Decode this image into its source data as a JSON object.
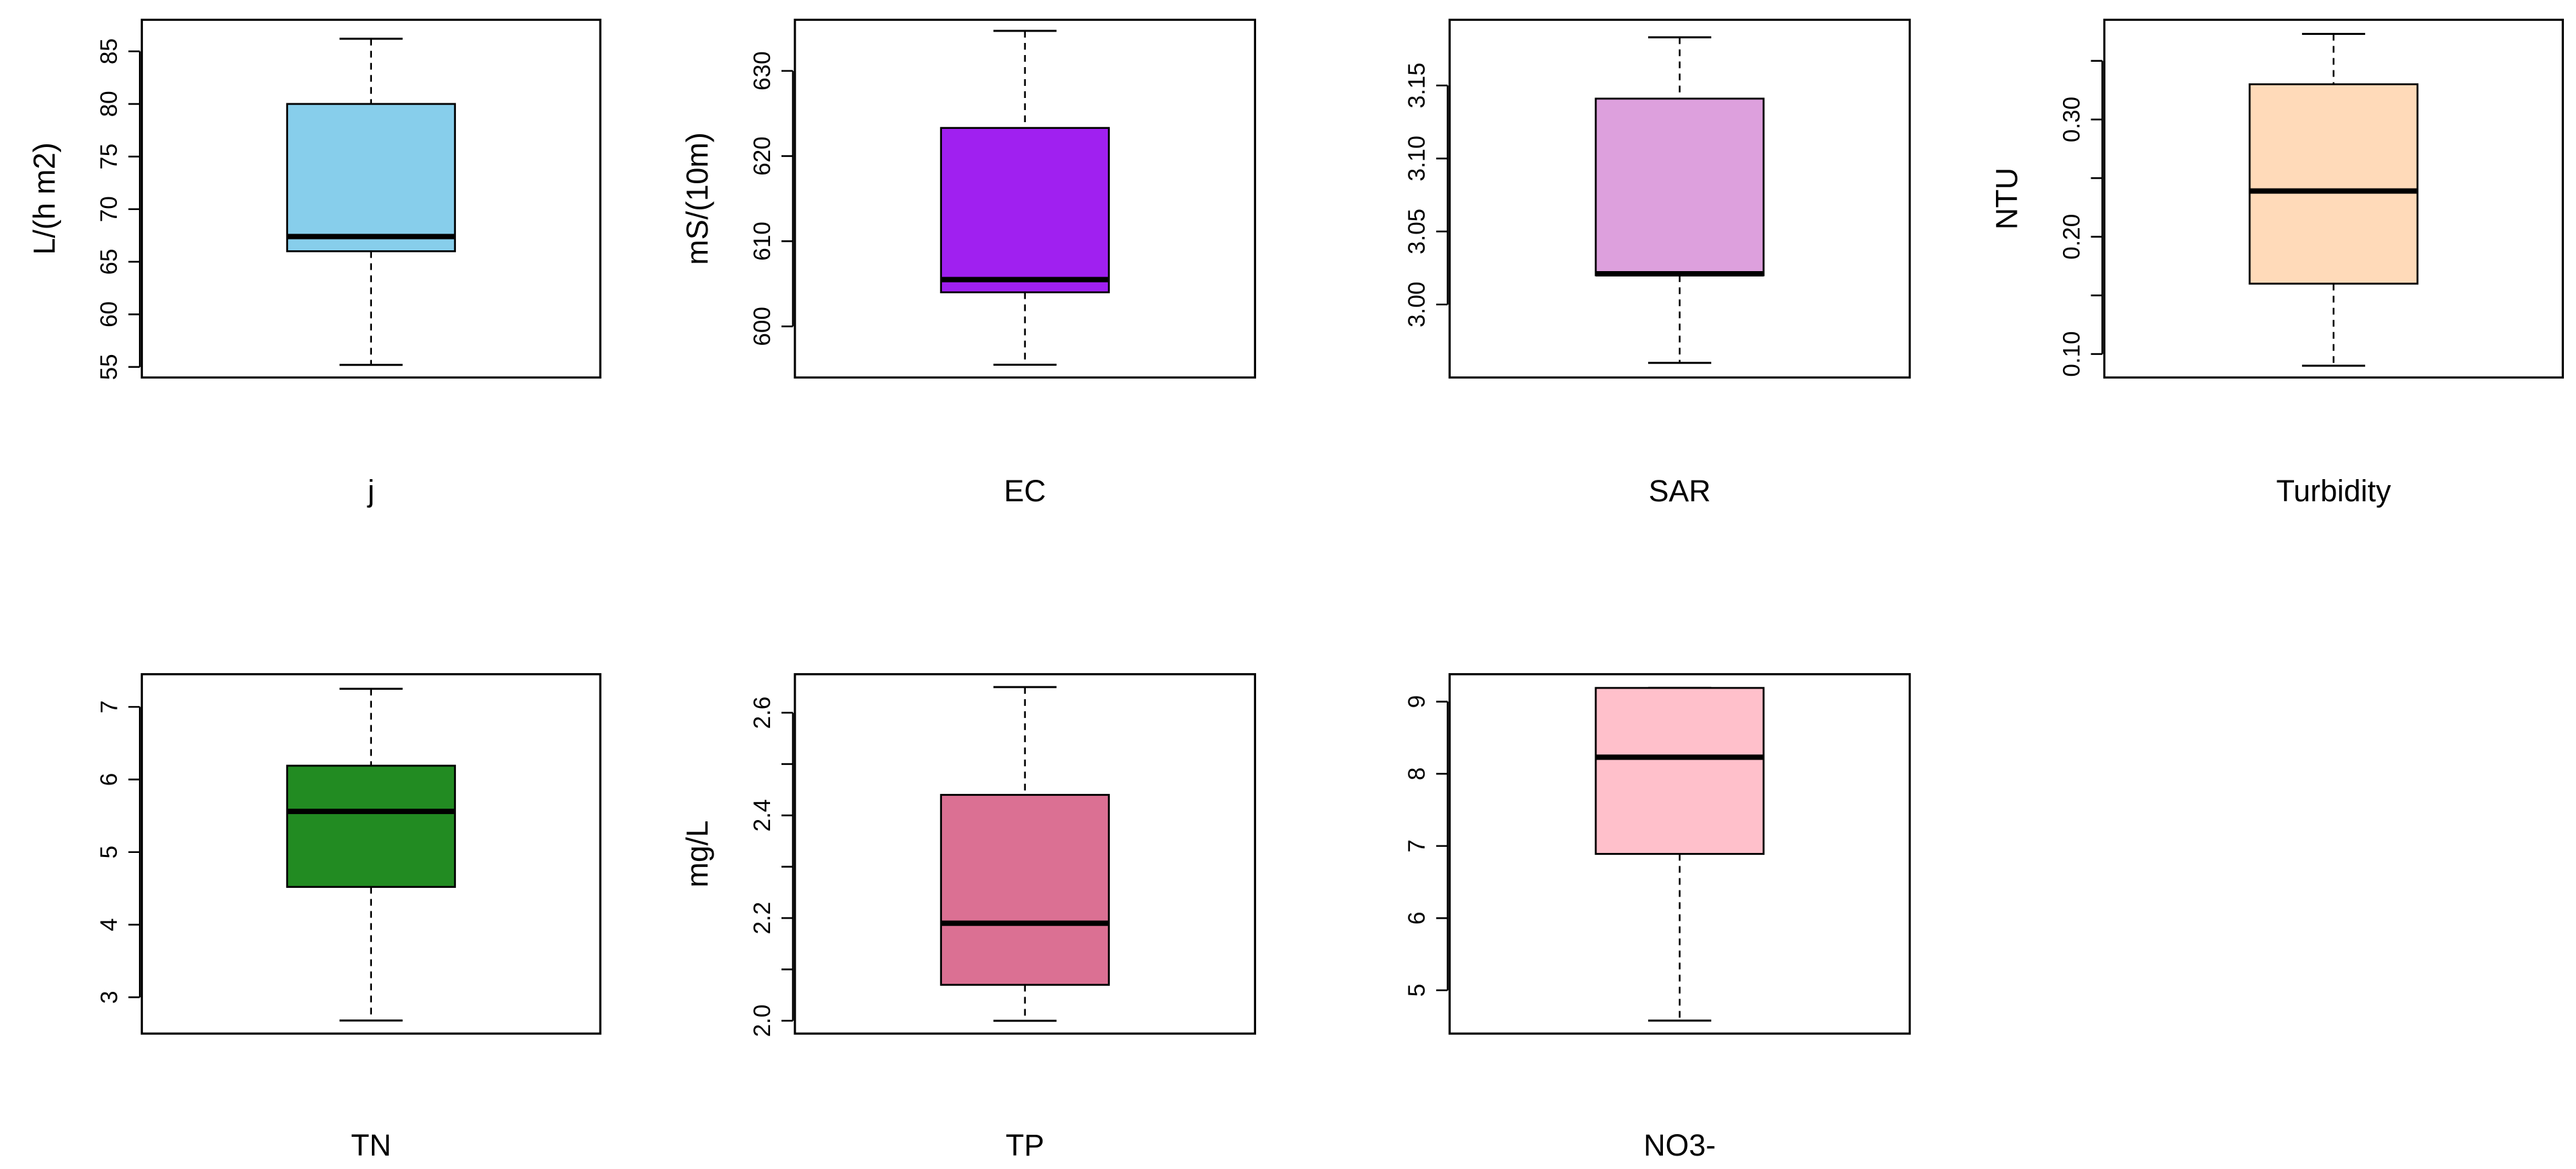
{
  "chart_data": [
    {
      "type": "box",
      "title": "j",
      "ylabel": "L/(h m2)",
      "color": "#87CEEB",
      "ylim": [
        54,
        88
      ],
      "ticks": [
        55,
        60,
        65,
        70,
        75,
        80,
        85
      ],
      "tick_labels": [
        "55",
        "60",
        "65",
        "70",
        "75",
        "80",
        "85"
      ],
      "box": {
        "min": 55.2,
        "q1": 66.0,
        "median": 67.4,
        "q3": 80.0,
        "max": 86.2
      }
    },
    {
      "type": "box",
      "title": "EC",
      "ylabel": "mS/(10m)",
      "color": "#A020F0",
      "ylim": [
        594,
        636
      ],
      "ticks": [
        600,
        610,
        620,
        630
      ],
      "tick_labels": [
        "600",
        "610",
        "620",
        "630"
      ],
      "box": {
        "min": 595.5,
        "q1": 604.0,
        "median": 605.5,
        "q3": 623.3,
        "max": 634.7
      }
    },
    {
      "type": "box",
      "title": "SAR",
      "ylabel": "",
      "color": "#DDA0DD",
      "ylim": [
        2.95,
        3.195
      ],
      "ticks": [
        3.0,
        3.05,
        3.1,
        3.15
      ],
      "tick_labels": [
        "3.00",
        "3.05",
        "3.10",
        "3.15"
      ],
      "box": {
        "min": 2.96,
        "q1": 3.02,
        "median": 3.021,
        "q3": 3.141,
        "max": 3.183
      }
    },
    {
      "type": "box",
      "title": "Turbidity",
      "ylabel": "NTU",
      "color": "#FFDAB9",
      "ylim": [
        0.08,
        0.385
      ],
      "ticks": [
        0.1,
        0.15,
        0.2,
        0.25,
        0.3,
        0.35
      ],
      "tick_labels": [
        "0.10",
        "",
        "0.20",
        "",
        "0.30",
        ""
      ],
      "box": {
        "min": 0.09,
        "q1": 0.16,
        "median": 0.239,
        "q3": 0.33,
        "max": 0.373
      }
    },
    {
      "type": "box",
      "title": "TN",
      "ylabel": "",
      "color": "#228B22",
      "ylim": [
        2.5,
        7.45
      ],
      "ticks": [
        3,
        4,
        5,
        6,
        7
      ],
      "tick_labels": [
        "3",
        "4",
        "5",
        "6",
        "7"
      ],
      "box": {
        "min": 2.68,
        "q1": 4.52,
        "median": 5.56,
        "q3": 6.19,
        "max": 7.25
      }
    },
    {
      "type": "box",
      "title": "TP",
      "ylabel": "mg/L",
      "color": "#DB7093",
      "ylim": [
        1.975,
        2.675
      ],
      "ticks": [
        2.0,
        2.1,
        2.2,
        2.3,
        2.4,
        2.5,
        2.6
      ],
      "tick_labels": [
        "2.0",
        "",
        "2.2",
        "",
        "2.4",
        "",
        "2.6"
      ],
      "box": {
        "min": 2.0,
        "q1": 2.07,
        "median": 2.19,
        "q3": 2.44,
        "max": 2.65
      }
    },
    {
      "type": "box",
      "title": "NO3-",
      "ylabel": "",
      "color": "#FFC0CB",
      "ylim": [
        4.4,
        9.38
      ],
      "ticks": [
        5,
        6,
        7,
        8,
        9
      ],
      "tick_labels": [
        "5",
        "6",
        "7",
        "8",
        "9"
      ],
      "box": {
        "min": 4.58,
        "q1": 6.89,
        "median": 8.23,
        "q3": 9.19,
        "max": 9.19
      }
    }
  ]
}
